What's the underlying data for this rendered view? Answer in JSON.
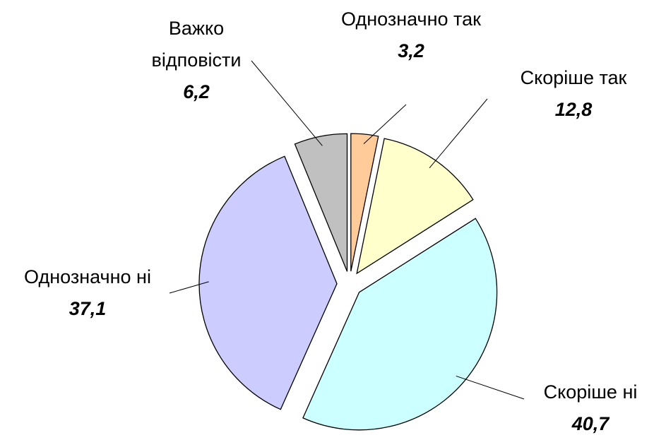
{
  "chart_data": {
    "type": "pie",
    "categories": [
      "Однозначно так",
      "Скоріше так",
      "Скоріше ні",
      "Однозначно ні",
      "Важко відповісти"
    ],
    "values": [
      3.2,
      12.8,
      40.7,
      37.1,
      6.2
    ],
    "value_labels": [
      "3,2",
      "12,8",
      "40,7",
      "37,1",
      "6,2"
    ],
    "colors": [
      "#FFCC99",
      "#FFFFCC",
      "#CCFFFF",
      "#CCCCFF",
      "#C0C0C0"
    ]
  }
}
